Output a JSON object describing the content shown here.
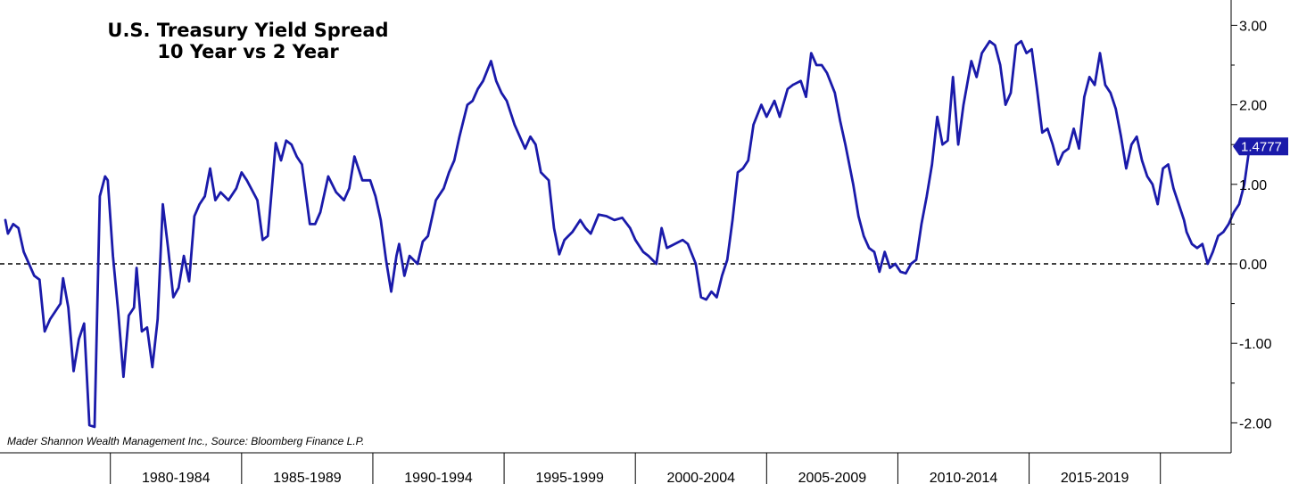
{
  "chart_data": {
    "type": "line",
    "title": "U.S. Treasury Yield Spread",
    "subtitle": "10 Year vs 2 Year",
    "source": "Mader Shannon Wealth Management Inc., Source: Bloomberg Finance L.P.",
    "categories": [
      "1980-1984",
      "1985-1989",
      "1990-1994",
      "1995-1999",
      "2000-2004",
      "2005-2009",
      "2010-2014",
      "2015-2019"
    ],
    "yticks": [
      "3.00",
      "2.00",
      "1.00",
      "0.00",
      "-1.00",
      "-2.00"
    ],
    "ylim": [
      -2.3,
      3.3
    ],
    "xlim": [
      1976.0,
      2021.2
    ],
    "zero_line": true,
    "last_value": "1.4777",
    "colors": {
      "line": "#1a1aaa",
      "badge": "#1a1aaa",
      "zero_line": "#000000"
    },
    "series": [
      {
        "points": [
          [
            1976.0,
            0.55
          ],
          [
            1976.1,
            0.38
          ],
          [
            1976.3,
            0.5
          ],
          [
            1976.5,
            0.45
          ],
          [
            1976.7,
            0.15
          ],
          [
            1976.9,
            0.0
          ],
          [
            1977.1,
            -0.15
          ],
          [
            1977.3,
            -0.2
          ],
          [
            1977.5,
            -0.85
          ],
          [
            1977.7,
            -0.7
          ],
          [
            1977.9,
            -0.6
          ],
          [
            1978.1,
            -0.5
          ],
          [
            1978.2,
            -0.18
          ],
          [
            1978.4,
            -0.55
          ],
          [
            1978.6,
            -1.35
          ],
          [
            1978.8,
            -0.95
          ],
          [
            1979.0,
            -0.75
          ],
          [
            1979.2,
            -2.03
          ],
          [
            1979.4,
            -2.05
          ],
          [
            1979.6,
            0.85
          ],
          [
            1979.8,
            1.1
          ],
          [
            1979.9,
            1.05
          ],
          [
            1980.1,
            0.1
          ],
          [
            1980.3,
            -0.6
          ],
          [
            1980.5,
            -1.42
          ],
          [
            1980.7,
            -0.65
          ],
          [
            1980.9,
            -0.55
          ],
          [
            1981.0,
            -0.05
          ],
          [
            1981.2,
            -0.85
          ],
          [
            1981.4,
            -0.8
          ],
          [
            1981.6,
            -1.3
          ],
          [
            1981.8,
            -0.7
          ],
          [
            1982.0,
            0.75
          ],
          [
            1982.2,
            0.2
          ],
          [
            1982.4,
            -0.42
          ],
          [
            1982.6,
            -0.3
          ],
          [
            1982.8,
            0.1
          ],
          [
            1983.0,
            -0.22
          ],
          [
            1983.2,
            0.6
          ],
          [
            1983.4,
            0.75
          ],
          [
            1983.6,
            0.85
          ],
          [
            1983.8,
            1.2
          ],
          [
            1984.0,
            0.8
          ],
          [
            1984.2,
            0.9
          ],
          [
            1984.5,
            0.8
          ],
          [
            1984.8,
            0.95
          ],
          [
            1985.0,
            1.15
          ],
          [
            1985.2,
            1.05
          ],
          [
            1985.6,
            0.8
          ],
          [
            1985.8,
            0.3
          ],
          [
            1986.0,
            0.35
          ],
          [
            1986.3,
            1.52
          ],
          [
            1986.5,
            1.3
          ],
          [
            1986.7,
            1.55
          ],
          [
            1986.9,
            1.5
          ],
          [
            1987.1,
            1.35
          ],
          [
            1987.3,
            1.25
          ],
          [
            1987.6,
            0.5
          ],
          [
            1987.8,
            0.5
          ],
          [
            1988.0,
            0.65
          ],
          [
            1988.3,
            1.1
          ],
          [
            1988.6,
            0.9
          ],
          [
            1988.9,
            0.8
          ],
          [
            1989.1,
            0.95
          ],
          [
            1989.3,
            1.35
          ],
          [
            1989.6,
            1.05
          ],
          [
            1989.9,
            1.05
          ],
          [
            1990.1,
            0.85
          ],
          [
            1990.3,
            0.55
          ],
          [
            1990.5,
            0.05
          ],
          [
            1990.7,
            -0.35
          ],
          [
            1990.9,
            0.1
          ],
          [
            1991.0,
            0.25
          ],
          [
            1991.2,
            -0.15
          ],
          [
            1991.4,
            0.1
          ],
          [
            1991.7,
            0.0
          ],
          [
            1991.9,
            0.28
          ],
          [
            1992.1,
            0.35
          ],
          [
            1992.4,
            0.8
          ],
          [
            1992.7,
            0.95
          ],
          [
            1992.9,
            1.15
          ],
          [
            1993.1,
            1.3
          ],
          [
            1993.3,
            1.6
          ],
          [
            1993.6,
            2.0
          ],
          [
            1993.8,
            2.05
          ],
          [
            1994.0,
            2.2
          ],
          [
            1994.2,
            2.3
          ],
          [
            1994.5,
            2.55
          ],
          [
            1994.7,
            2.3
          ],
          [
            1994.9,
            2.15
          ],
          [
            1995.1,
            2.05
          ],
          [
            1995.4,
            1.75
          ],
          [
            1995.6,
            1.6
          ],
          [
            1995.8,
            1.45
          ],
          [
            1996.0,
            1.6
          ],
          [
            1996.2,
            1.5
          ],
          [
            1996.4,
            1.15
          ],
          [
            1996.7,
            1.05
          ],
          [
            1996.9,
            0.45
          ],
          [
            1997.1,
            0.12
          ],
          [
            1997.3,
            0.3
          ],
          [
            1997.6,
            0.4
          ],
          [
            1997.9,
            0.55
          ],
          [
            1998.1,
            0.45
          ],
          [
            1998.3,
            0.38
          ],
          [
            1998.6,
            0.62
          ],
          [
            1998.9,
            0.6
          ],
          [
            1999.2,
            0.55
          ],
          [
            1999.5,
            0.58
          ],
          [
            1999.8,
            0.45
          ],
          [
            2000.0,
            0.3
          ],
          [
            2000.3,
            0.15
          ],
          [
            2000.5,
            0.1
          ],
          [
            2000.8,
            0.0
          ],
          [
            2001.0,
            0.45
          ],
          [
            2001.2,
            0.2
          ],
          [
            2001.5,
            0.25
          ],
          [
            2001.8,
            0.3
          ],
          [
            2002.0,
            0.25
          ],
          [
            2002.3,
            0.0
          ],
          [
            2002.5,
            -0.42
          ],
          [
            2002.7,
            -0.45
          ],
          [
            2002.9,
            -0.35
          ],
          [
            2003.1,
            -0.42
          ],
          [
            2003.3,
            -0.15
          ],
          [
            2003.5,
            0.05
          ],
          [
            2003.7,
            0.55
          ],
          [
            2003.9,
            1.15
          ],
          [
            2004.1,
            1.2
          ],
          [
            2004.3,
            1.3
          ],
          [
            2004.5,
            1.75
          ],
          [
            2004.8,
            2.0
          ],
          [
            2005.0,
            1.85
          ],
          [
            2005.3,
            2.05
          ],
          [
            2005.5,
            1.85
          ],
          [
            2005.8,
            2.2
          ],
          [
            2006.0,
            2.25
          ],
          [
            2006.3,
            2.3
          ],
          [
            2006.5,
            2.1
          ],
          [
            2006.7,
            2.65
          ],
          [
            2006.9,
            2.5
          ],
          [
            2007.1,
            2.5
          ],
          [
            2007.3,
            2.4
          ],
          [
            2007.6,
            2.15
          ],
          [
            2007.8,
            1.8
          ],
          [
            2008.0,
            1.5
          ],
          [
            2008.3,
            1.0
          ],
          [
            2008.5,
            0.6
          ],
          [
            2008.7,
            0.35
          ],
          [
            2008.9,
            0.2
          ],
          [
            2009.1,
            0.15
          ],
          [
            2009.3,
            -0.1
          ],
          [
            2009.5,
            0.15
          ],
          [
            2009.7,
            -0.05
          ],
          [
            2009.9,
            0.0
          ],
          [
            2010.1,
            -0.1
          ],
          [
            2010.3,
            -0.12
          ],
          [
            2010.5,
            0.0
          ],
          [
            2010.7,
            0.05
          ],
          [
            2010.9,
            0.5
          ],
          [
            2011.1,
            0.85
          ],
          [
            2011.3,
            1.25
          ],
          [
            2011.5,
            1.85
          ],
          [
            2011.7,
            1.5
          ],
          [
            2011.9,
            1.55
          ],
          [
            2012.1,
            2.35
          ],
          [
            2012.3,
            1.5
          ],
          [
            2012.5,
            2.0
          ],
          [
            2012.8,
            2.55
          ],
          [
            2013.0,
            2.35
          ],
          [
            2013.2,
            2.65
          ],
          [
            2013.5,
            2.8
          ],
          [
            2013.7,
            2.75
          ],
          [
            2013.9,
            2.5
          ],
          [
            2014.1,
            2.0
          ],
          [
            2014.3,
            2.15
          ],
          [
            2014.5,
            2.75
          ],
          [
            2014.7,
            2.8
          ],
          [
            2014.9,
            2.65
          ],
          [
            2015.1,
            2.7
          ],
          [
            2015.3,
            2.2
          ],
          [
            2015.5,
            1.65
          ],
          [
            2015.7,
            1.7
          ],
          [
            2015.9,
            1.5
          ],
          [
            2016.1,
            1.25
          ],
          [
            2016.3,
            1.4
          ],
          [
            2016.5,
            1.45
          ],
          [
            2016.7,
            1.7
          ],
          [
            2016.9,
            1.45
          ],
          [
            2017.1,
            2.1
          ],
          [
            2017.3,
            2.35
          ],
          [
            2017.5,
            2.25
          ],
          [
            2017.7,
            2.65
          ],
          [
            2017.9,
            2.25
          ],
          [
            2018.1,
            2.15
          ],
          [
            2018.3,
            1.95
          ],
          [
            2018.5,
            1.6
          ],
          [
            2018.7,
            1.2
          ],
          [
            2018.9,
            1.5
          ],
          [
            2019.1,
            1.6
          ],
          [
            2019.3,
            1.3
          ],
          [
            2019.5,
            1.1
          ],
          [
            2019.7,
            1.0
          ],
          [
            2019.9,
            0.75
          ],
          [
            2020.1,
            1.2
          ],
          [
            2020.3,
            1.25
          ],
          [
            2020.5,
            0.95
          ],
          [
            2020.7,
            0.75
          ],
          [
            2020.9,
            0.55
          ],
          [
            2021.0,
            0.4
          ],
          [
            2021.2,
            0.25
          ],
          [
            2021.4,
            0.2
          ],
          [
            2021.6,
            0.25
          ],
          [
            2021.8,
            0.0
          ],
          [
            2022.0,
            0.15
          ],
          [
            2022.2,
            0.35
          ],
          [
            2022.4,
            0.4
          ],
          [
            2022.6,
            0.5
          ],
          [
            2022.8,
            0.65
          ],
          [
            2023.0,
            0.75
          ],
          [
            2023.2,
            1.0
          ],
          [
            2023.4,
            1.4777
          ]
        ]
      }
    ]
  }
}
